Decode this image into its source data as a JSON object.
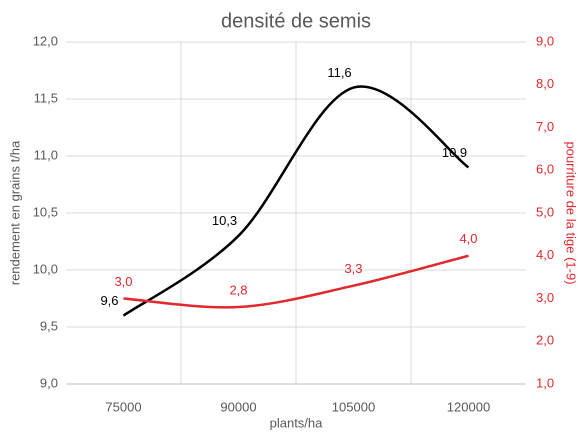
{
  "chart_data": {
    "type": "line",
    "title": "densité de semis",
    "x_label": "plants/ha",
    "y_label": "rendement en grains t/ha",
    "y2_label": "pourriture de la tige (1-9)",
    "categories": [
      "75000",
      "90000",
      "105000",
      "120000"
    ],
    "series": [
      {
        "color": "#000000",
        "values": [
          9.6,
          10.3,
          11.6,
          10.9
        ],
        "value_labels": [
          "9,6",
          "10,3",
          "11,6",
          "10,9"
        ]
      },
      {
        "color": "#e0282e",
        "axis": "y2",
        "values": [
          3.0,
          2.8,
          3.3,
          4.0
        ],
        "value_labels": [
          "3,0",
          "2,8",
          "3,3",
          "4,0"
        ]
      }
    ],
    "ylim": [
      9.0,
      12.0
    ],
    "yticks": [
      {
        "value": 9.0,
        "label": "9,0"
      },
      {
        "value": 9.5,
        "label": "9,5"
      },
      {
        "value": 10.0,
        "label": "10,0"
      },
      {
        "value": 10.5,
        "label": "10,5"
      },
      {
        "value": 11.0,
        "label": "11,0"
      },
      {
        "value": 11.5,
        "label": "11,5"
      },
      {
        "value": 12.0,
        "label": "12,0"
      }
    ],
    "y2lim": [
      1.0,
      9.0
    ],
    "y2ticks": [
      {
        "value": 1.0,
        "label": "1,0"
      },
      {
        "value": 2.0,
        "label": "2,0"
      },
      {
        "value": 3.0,
        "label": "3,0"
      },
      {
        "value": 4.0,
        "label": "4,0"
      },
      {
        "value": 5.0,
        "label": "5,0"
      },
      {
        "value": 6.0,
        "label": "6,0"
      },
      {
        "value": 7.0,
        "label": "7,0"
      },
      {
        "value": 8.0,
        "label": "8,0"
      },
      {
        "value": 9.0,
        "label": "9,0"
      }
    ],
    "y2color": "#e0282e",
    "smooth": true,
    "grid": true
  }
}
